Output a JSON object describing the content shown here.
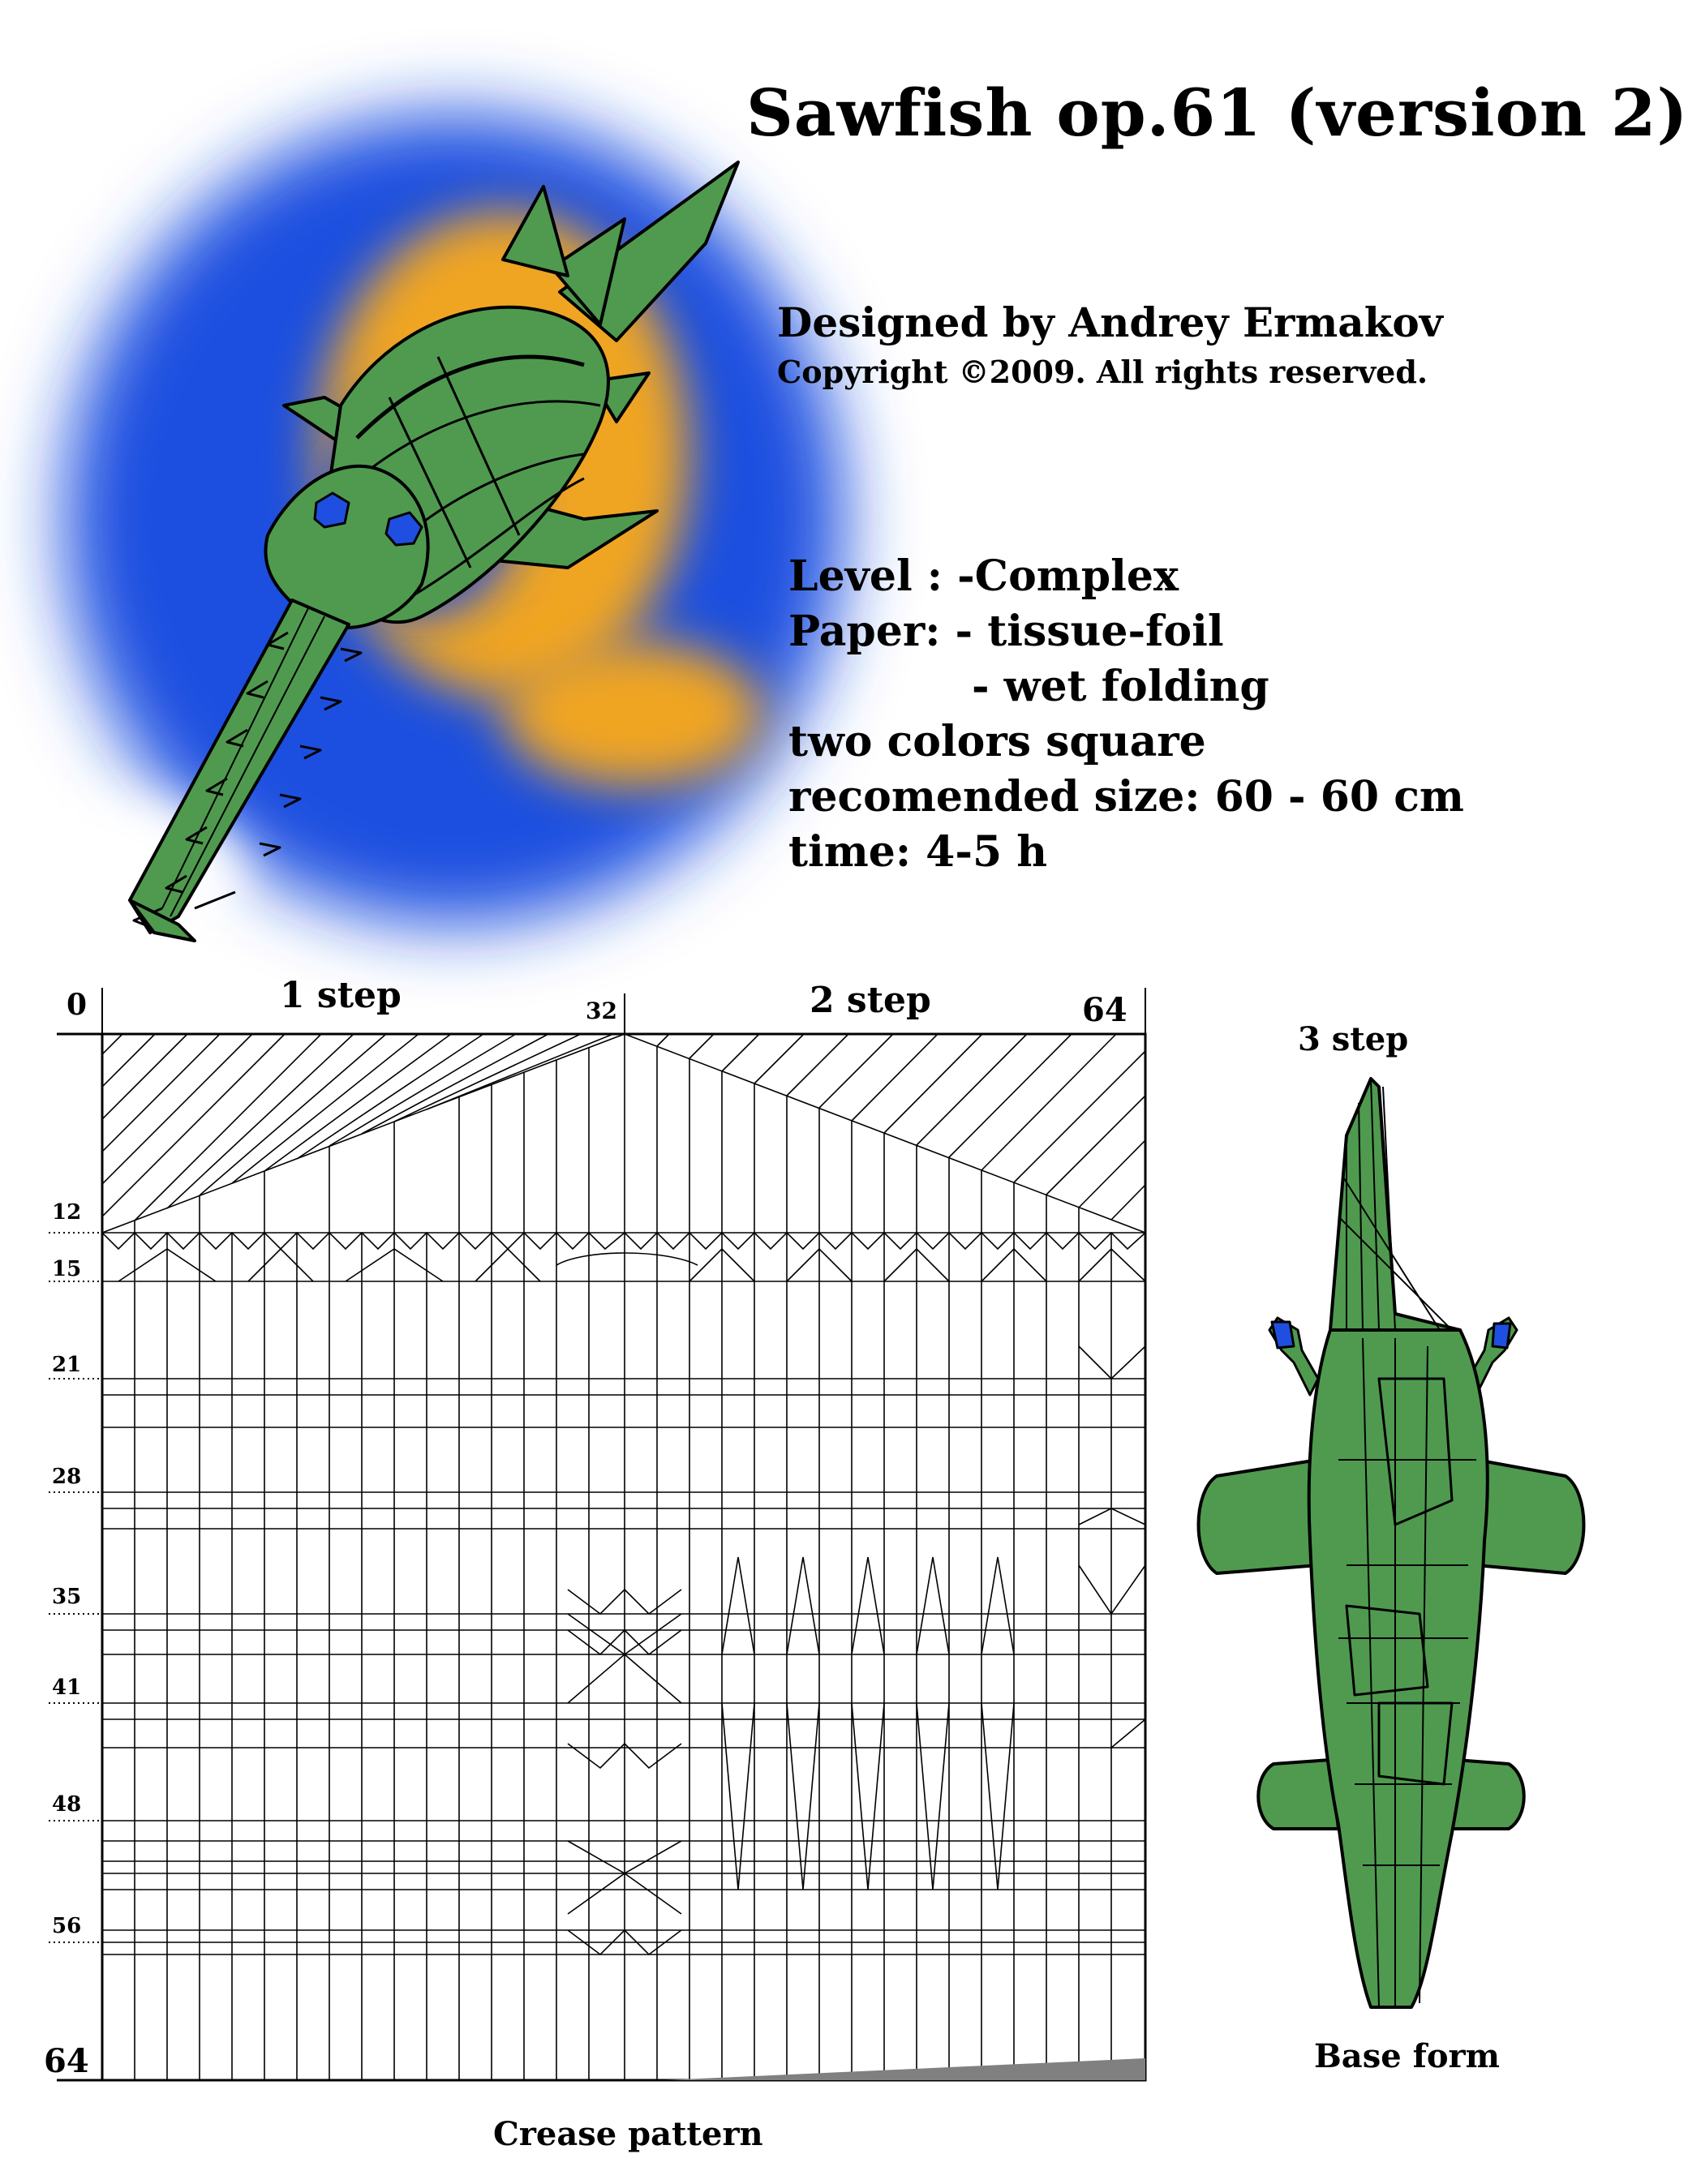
{
  "title": "Sawfish op.61 (version 2)",
  "designer": "Designed by Andrey Ermakov",
  "copyright": "Copyright ©2009. All rights reserved.",
  "specs": {
    "level": "Level  : -Complex",
    "paper1": "Paper: - tissue-foil",
    "paper2": "- wet folding",
    "color": "two colors square",
    "size": "recomended size: 60 - 60 cm",
    "time": "time: 4-5 h"
  },
  "steps": {
    "step1": "1 step",
    "step2": "2 step",
    "step3": "3 step"
  },
  "grid_labels": {
    "top": [
      "0",
      "32",
      "64"
    ],
    "left": [
      "12",
      "15",
      "21",
      "28",
      "35",
      "41",
      "48",
      "56",
      "64"
    ]
  },
  "captions": {
    "crease": "Crease pattern",
    "base": "Base form"
  },
  "colors": {
    "green": "#4f9a4f",
    "blue": "#1e4fe0",
    "orange": "#f0a520"
  }
}
